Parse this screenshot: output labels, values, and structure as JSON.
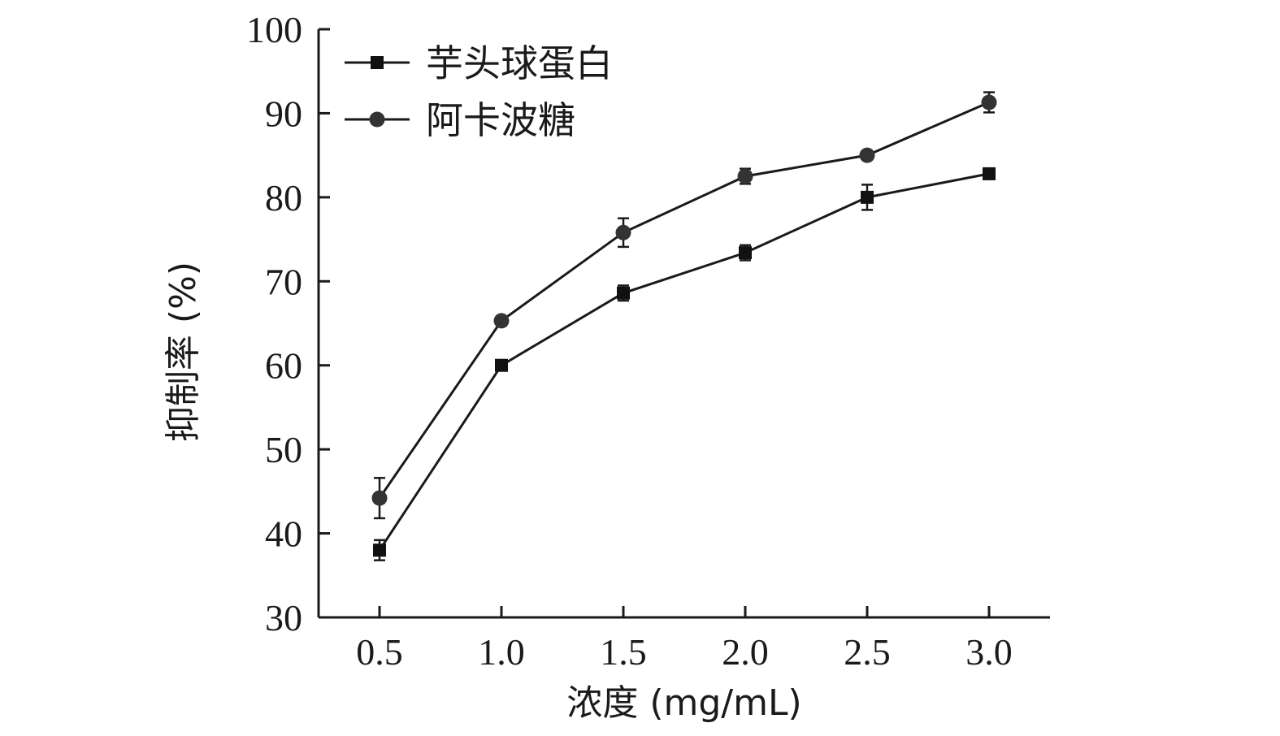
{
  "chart_data": {
    "type": "line",
    "title": "",
    "xlabel": "浓度 (mg/mL)",
    "ylabel": "抑制率 (%)",
    "x": [
      0.5,
      1.0,
      1.5,
      2.0,
      2.5,
      3.0
    ],
    "x_tick_labels": [
      "0.5",
      "1.0",
      "1.5",
      "2.0",
      "2.5",
      "3.0"
    ],
    "xlim": [
      0.25,
      3.25
    ],
    "ylim": [
      30,
      100
    ],
    "y_ticks": [
      30,
      40,
      50,
      60,
      70,
      80,
      90,
      100
    ],
    "grid": false,
    "legend_position": "top-left",
    "series": [
      {
        "name": "芋头球蛋白",
        "marker": "square",
        "values": [
          38.0,
          60.0,
          68.6,
          73.4,
          80.0,
          82.8
        ],
        "errors": [
          1.2,
          0.6,
          0.9,
          0.9,
          1.5,
          0.5
        ]
      },
      {
        "name": "阿卡波糖",
        "marker": "circle",
        "values": [
          44.2,
          65.3,
          75.8,
          82.5,
          85.0,
          91.3
        ],
        "errors": [
          2.4,
          0.5,
          1.7,
          0.9,
          0.5,
          1.2
        ]
      }
    ],
    "colors": {
      "line": "#1a1a1a",
      "marker_square": "#111111",
      "marker_circle": "#333333"
    }
  }
}
